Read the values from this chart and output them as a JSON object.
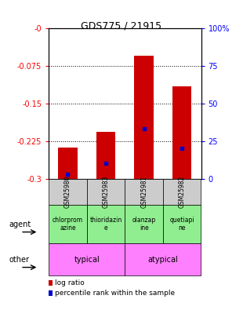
{
  "title": "GDS775 / 21915",
  "samples": [
    "GSM25980",
    "GSM25983",
    "GSM25981",
    "GSM25982"
  ],
  "log_ratio": [
    -0.238,
    -0.207,
    -0.055,
    -0.115
  ],
  "percentile_rank": [
    3,
    10,
    33,
    20
  ],
  "ylim_left": [
    -0.3,
    0.0
  ],
  "ylim_right": [
    0,
    100
  ],
  "yticks_left": [
    0.0,
    -0.075,
    -0.15,
    -0.225,
    -0.3
  ],
  "yticks_right": [
    100,
    75,
    50,
    25,
    0
  ],
  "agents": [
    "chlorprom\nazine",
    "thioridazin\ne",
    "olanzap\nine",
    "quetiapi\nne"
  ],
  "other_groups": [
    [
      "typical",
      2
    ],
    [
      "atypical",
      2
    ]
  ],
  "bar_color": "#cc0000",
  "blue_color": "#0000cc",
  "bar_width": 0.5,
  "sample_bg_color": "#cccccc",
  "agent_bg_color": "#90ee90",
  "other_bg_color": "#ff80ff"
}
